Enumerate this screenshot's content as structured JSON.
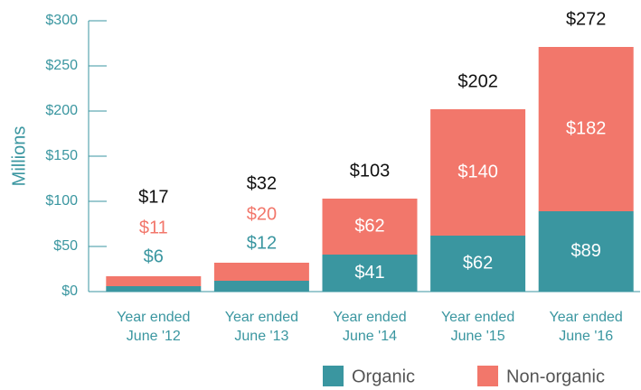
{
  "chart_data": {
    "type": "stacked_bar",
    "y_label": "Millions",
    "categories": [
      "Year ended June '12",
      "Year ended June '13",
      "Year ended June '14",
      "Year ended June '15",
      "Year ended June '16"
    ],
    "series": [
      {
        "name": "Organic",
        "color": "#3a96a0",
        "values": [
          6,
          12,
          41,
          62,
          89
        ],
        "value_labels": [
          "$6",
          "$12",
          "$41",
          "$62",
          "$89"
        ]
      },
      {
        "name": "Non-organic",
        "color": "#f2776b",
        "values": [
          11,
          20,
          62,
          140,
          182
        ],
        "value_labels": [
          "$11",
          "$20",
          "$62",
          "$140",
          "$182"
        ]
      }
    ],
    "totals": [
      17,
      32,
      103,
      202,
      272
    ],
    "total_labels": [
      "$17",
      "$32",
      "$103",
      "$202",
      "$272"
    ],
    "ylim": [
      0,
      300
    ],
    "yticks": [
      {
        "value": 0,
        "label": "$0"
      },
      {
        "value": 50,
        "label": "$50"
      },
      {
        "value": 100,
        "label": "$100"
      },
      {
        "value": 150,
        "label": "$150"
      },
      {
        "value": 200,
        "label": "$200"
      },
      {
        "value": 250,
        "label": "$250"
      },
      {
        "value": 300,
        "label": "$300"
      }
    ],
    "legend": "bottom-right"
  }
}
